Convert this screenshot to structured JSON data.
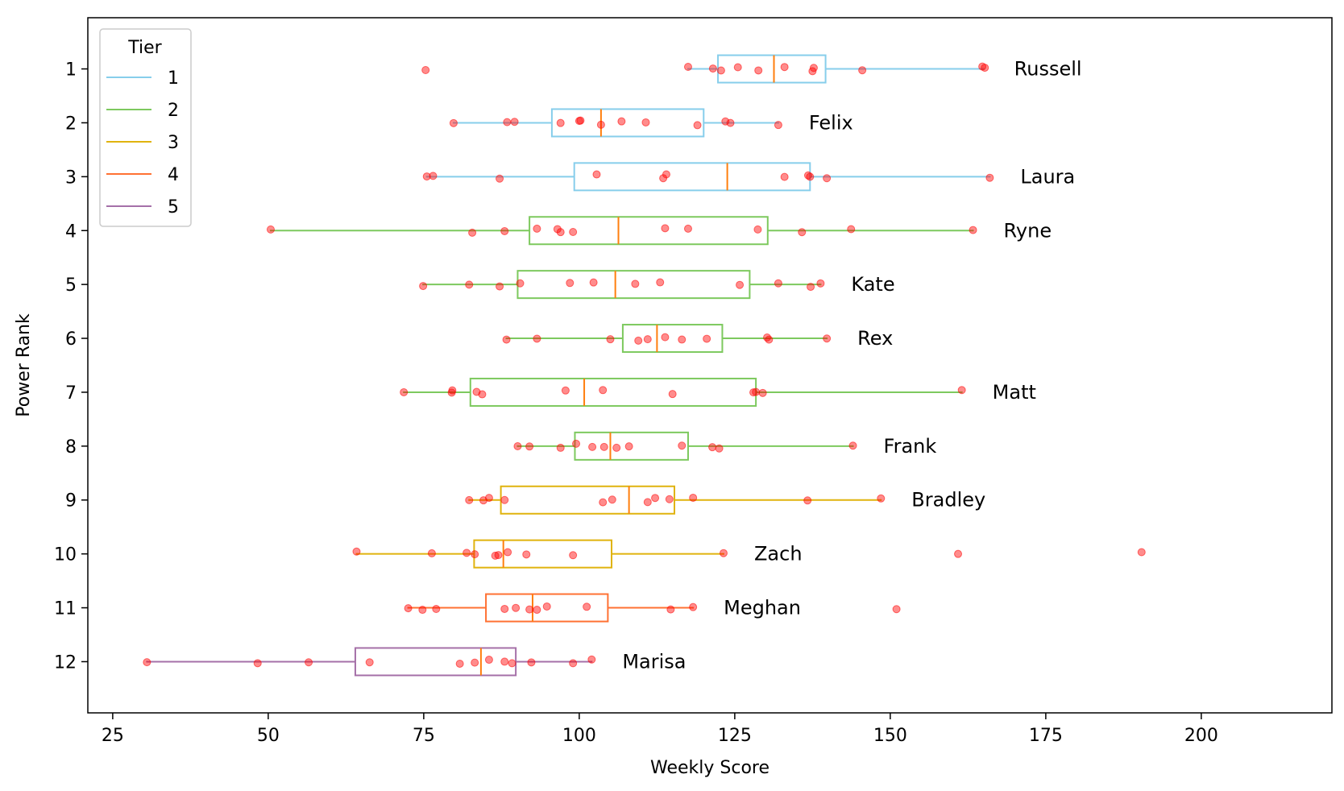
{
  "chart_data": {
    "type": "boxplot",
    "orientation": "horizontal",
    "xlabel": "Weekly Score",
    "ylabel": "Power Rank",
    "xlim": [
      21,
      221
    ],
    "ylim": [
      0.05,
      12.95
    ],
    "xticks": [
      25,
      50,
      75,
      100,
      125,
      150,
      175,
      200
    ],
    "yticks": [
      1,
      2,
      3,
      4,
      5,
      6,
      7,
      8,
      9,
      10,
      11,
      12
    ],
    "grid": false,
    "legend": {
      "title": "Tier",
      "placement": "top-left",
      "entries": [
        {
          "label": "1",
          "color": "#87ceeb"
        },
        {
          "label": "2",
          "color": "#7dc95e"
        },
        {
          "label": "3",
          "color": "#e0b30e"
        },
        {
          "label": "4",
          "color": "#ff7133"
        },
        {
          "label": "5",
          "color": "#a570a8"
        }
      ]
    },
    "median_color": "#ff7f0e",
    "point_color": "#ff0000",
    "series": [
      {
        "rank": 1,
        "name": "Russell",
        "tier": 1,
        "whisker_low": 117.5,
        "q1": 122.3,
        "median": 131.3,
        "q3": 139.6,
        "whisker_high": 165.0,
        "points": [
          75.3,
          117.5,
          121.5,
          122.8,
          125.5,
          128.8,
          133.0,
          137.5,
          137.7,
          145.5,
          164.8,
          165.2
        ]
      },
      {
        "rank": 2,
        "name": "Felix",
        "tier": 1,
        "whisker_low": 79.8,
        "q1": 95.6,
        "median": 103.5,
        "q3": 120.0,
        "whisker_high": 132.0,
        "points": [
          79.8,
          88.4,
          89.6,
          97.0,
          100.0,
          100.2,
          103.5,
          106.8,
          110.7,
          119.0,
          123.5,
          124.3,
          132.0
        ]
      },
      {
        "rank": 3,
        "name": "Laura",
        "tier": 1,
        "whisker_low": 75.5,
        "q1": 99.2,
        "median": 123.8,
        "q3": 137.1,
        "whisker_high": 166.0,
        "points": [
          75.5,
          76.5,
          87.2,
          102.8,
          113.5,
          114.0,
          133.0,
          136.8,
          137.1,
          139.8,
          166.0
        ]
      },
      {
        "rank": 4,
        "name": "Ryne",
        "tier": 2,
        "whisker_low": 50.4,
        "q1": 92.0,
        "median": 106.3,
        "q3": 130.3,
        "whisker_high": 163.3,
        "points": [
          50.4,
          82.8,
          88.0,
          93.2,
          96.5,
          97.0,
          99.0,
          113.8,
          117.5,
          128.7,
          135.8,
          143.7,
          163.3
        ]
      },
      {
        "rank": 5,
        "name": "Kate",
        "tier": 2,
        "whisker_low": 74.9,
        "q1": 90.1,
        "median": 105.8,
        "q3": 127.4,
        "whisker_high": 138.8,
        "points": [
          74.9,
          82.3,
          87.2,
          90.5,
          98.5,
          102.3,
          109.0,
          113.0,
          125.8,
          132.0,
          137.2,
          138.8
        ]
      },
      {
        "rank": 6,
        "name": "Rex",
        "tier": 2,
        "whisker_low": 88.3,
        "q1": 107.0,
        "median": 112.5,
        "q3": 123.0,
        "whisker_high": 139.8,
        "points": [
          88.3,
          93.2,
          105.0,
          109.5,
          111.0,
          113.8,
          116.5,
          120.5,
          130.2,
          130.5,
          139.8
        ]
      },
      {
        "rank": 7,
        "name": "Matt",
        "tier": 2,
        "whisker_low": 71.8,
        "q1": 82.5,
        "median": 100.8,
        "q3": 128.4,
        "whisker_high": 161.5,
        "points": [
          71.8,
          79.5,
          79.6,
          83.5,
          84.4,
          97.8,
          103.8,
          115.0,
          128.0,
          128.4,
          129.5,
          161.5
        ]
      },
      {
        "rank": 8,
        "name": "Frank",
        "tier": 2,
        "whisker_low": 90.1,
        "q1": 99.3,
        "median": 105.0,
        "q3": 117.5,
        "whisker_high": 144.0,
        "points": [
          90.1,
          92.0,
          97.0,
          99.5,
          102.1,
          104.0,
          106.0,
          108.0,
          116.5,
          121.4,
          122.5,
          144.0
        ]
      },
      {
        "rank": 9,
        "name": "Bradley",
        "tier": 3,
        "whisker_low": 82.3,
        "q1": 87.4,
        "median": 108.0,
        "q3": 115.3,
        "whisker_high": 148.5,
        "points": [
          82.3,
          84.6,
          85.5,
          88.0,
          103.8,
          105.3,
          111.0,
          112.2,
          114.5,
          118.3,
          136.7,
          148.5
        ]
      },
      {
        "rank": 10,
        "name": "Zach",
        "tier": 3,
        "whisker_low": 64.2,
        "q1": 83.1,
        "median": 87.8,
        "q3": 105.2,
        "whisker_high": 123.2,
        "points": [
          64.2,
          76.3,
          81.9,
          83.2,
          86.5,
          87.0,
          88.5,
          91.5,
          99.0,
          123.2,
          160.9,
          190.4
        ]
      },
      {
        "rank": 11,
        "name": "Meghan",
        "tier": 4,
        "whisker_low": 72.5,
        "q1": 85.0,
        "median": 92.5,
        "q3": 104.6,
        "whisker_high": 118.3,
        "points": [
          72.5,
          74.8,
          77.0,
          88.0,
          89.8,
          92.0,
          93.2,
          94.8,
          101.2,
          114.7,
          118.3,
          151.0
        ]
      },
      {
        "rank": 12,
        "name": "Marisa",
        "tier": 5,
        "whisker_low": 30.5,
        "q1": 64.0,
        "median": 84.2,
        "q3": 89.8,
        "whisker_high": 102.0,
        "points": [
          30.5,
          48.3,
          56.5,
          66.3,
          80.8,
          83.2,
          85.5,
          88.0,
          89.2,
          92.3,
          99.0,
          102.0
        ]
      }
    ]
  }
}
